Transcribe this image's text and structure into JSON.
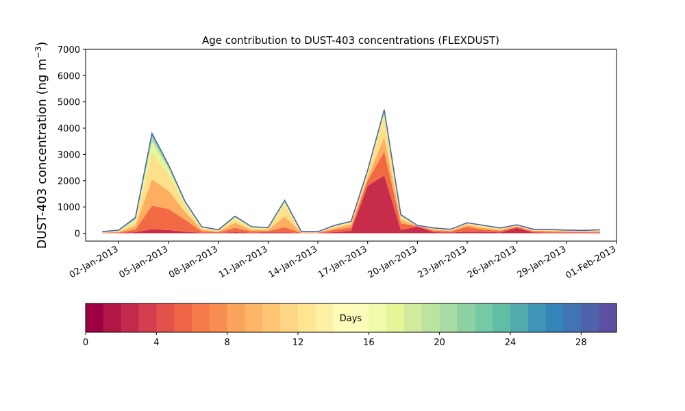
{
  "chart_data": {
    "type": "area",
    "stacked": true,
    "title": "Age contribution to DUST-403 concentrations (FLEXDUST)",
    "ylabel": "DUST-403 concentration (ng m",
    "ylabel_superscript": "−3",
    "ylabel_suffix": ")",
    "xlabel": "",
    "ylim": [
      -300,
      7000
    ],
    "xlim": [
      "2012-12-31",
      "2013-02-01"
    ],
    "grid": false,
    "y_ticks": [
      0,
      1000,
      2000,
      3000,
      4000,
      5000,
      6000,
      7000
    ],
    "x_tick_dates": [
      "2013-01-02",
      "2013-01-05",
      "2013-01-08",
      "2013-01-11",
      "2013-01-14",
      "2013-01-17",
      "2013-01-20",
      "2013-01-23",
      "2013-01-26",
      "2013-01-29",
      "2013-02-01"
    ],
    "x_tick_labels": [
      "02-Jan-2013",
      "05-Jan-2013",
      "08-Jan-2013",
      "11-Jan-2013",
      "14-Jan-2013",
      "17-Jan-2013",
      "20-Jan-2013",
      "23-Jan-2013",
      "26-Jan-2013",
      "29-Jan-2013",
      "01-Feb-2013"
    ],
    "x": [
      "2013-01-01",
      "2013-01-02",
      "2013-01-03",
      "2013-01-04",
      "2013-01-05",
      "2013-01-06",
      "2013-01-07",
      "2013-01-08",
      "2013-01-09",
      "2013-01-10",
      "2013-01-11",
      "2013-01-12",
      "2013-01-13",
      "2013-01-14",
      "2013-01-15",
      "2013-01-16",
      "2013-01-17",
      "2013-01-18",
      "2013-01-19",
      "2013-01-20",
      "2013-01-21",
      "2013-01-22",
      "2013-01-23",
      "2013-01-24",
      "2013-01-25",
      "2013-01-26",
      "2013-01-27",
      "2013-01-28",
      "2013-01-29",
      "2013-01-30",
      "2013-01-31"
    ],
    "total": [
      60,
      120,
      600,
      3800,
      2600,
      1200,
      250,
      130,
      650,
      250,
      210,
      1250,
      70,
      60,
      300,
      450,
      2400,
      4700,
      700,
      300,
      200,
      150,
      400,
      300,
      200,
      320,
      150,
      140,
      120,
      110,
      130
    ],
    "age_bands": [
      {
        "name": "0-4",
        "values": [
          5,
          10,
          40,
          150,
          120,
          60,
          15,
          10,
          40,
          15,
          30,
          30,
          5,
          5,
          40,
          90,
          1800,
          2200,
          120,
          250,
          40,
          25,
          60,
          50,
          30,
          200,
          25,
          20,
          15,
          15,
          15
        ]
      },
      {
        "name": "4-8",
        "values": [
          10,
          20,
          100,
          900,
          800,
          450,
          60,
          30,
          160,
          60,
          50,
          200,
          15,
          15,
          90,
          130,
          200,
          900,
          250,
          20,
          60,
          45,
          180,
          90,
          60,
          40,
          45,
          40,
          35,
          30,
          35
        ]
      },
      {
        "name": "8-12",
        "values": [
          10,
          25,
          150,
          1000,
          700,
          300,
          60,
          30,
          200,
          60,
          50,
          400,
          15,
          15,
          70,
          110,
          130,
          550,
          140,
          10,
          40,
          30,
          80,
          60,
          40,
          30,
          30,
          30,
          25,
          20,
          25
        ]
      },
      {
        "name": "12-16",
        "values": [
          10,
          25,
          150,
          1000,
          600,
          250,
          60,
          30,
          150,
          60,
          40,
          450,
          15,
          10,
          60,
          80,
          170,
          800,
          130,
          10,
          35,
          25,
          50,
          60,
          40,
          30,
          30,
          30,
          25,
          25,
          30
        ]
      },
      {
        "name": "16-20",
        "values": [
          10,
          20,
          80,
          450,
          250,
          90,
          30,
          15,
          60,
          30,
          20,
          120,
          10,
          5,
          20,
          20,
          40,
          150,
          30,
          5,
          15,
          15,
          15,
          20,
          15,
          10,
          10,
          10,
          10,
          10,
          10
        ]
      },
      {
        "name": "20-24",
        "values": [
          8,
          10,
          40,
          200,
          80,
          30,
          15,
          8,
          25,
          15,
          10,
          30,
          5,
          5,
          10,
          10,
          30,
          50,
          15,
          3,
          5,
          5,
          8,
          10,
          8,
          5,
          5,
          5,
          5,
          5,
          8
        ]
      },
      {
        "name": "24-28",
        "values": [
          5,
          7,
          25,
          70,
          40,
          15,
          7,
          5,
          12,
          8,
          7,
          15,
          3,
          3,
          7,
          7,
          20,
          30,
          10,
          1,
          3,
          3,
          5,
          7,
          5,
          3,
          3,
          3,
          3,
          3,
          5
        ]
      },
      {
        "name": "28-30",
        "values": [
          2,
          3,
          15,
          30,
          10,
          5,
          3,
          2,
          3,
          2,
          3,
          5,
          2,
          2,
          3,
          3,
          10,
          20,
          5,
          1,
          2,
          2,
          2,
          3,
          2,
          2,
          2,
          2,
          2,
          2,
          2
        ]
      }
    ],
    "band_colors": [
      "#c72d4b",
      "#f16a43",
      "#fdae61",
      "#fee08b",
      "#e6f598",
      "#abdda4",
      "#66c2a5",
      "#3288bd"
    ],
    "total_line_color": "#4a63a8",
    "colorbar": {
      "label": "Days",
      "ticks": [
        0,
        4,
        8,
        12,
        16,
        20,
        24,
        28
      ],
      "range": [
        0,
        30
      ],
      "colors": [
        "#9e0142",
        "#b11747",
        "#c32a4b",
        "#d53e4f",
        "#e2514a",
        "#ee6445",
        "#f67a49",
        "#f98e52",
        "#fca35c",
        "#fdb567",
        "#fec575",
        "#fed685",
        "#fee592",
        "#fef1a6",
        "#fffbb9",
        "#fbfdba",
        "#f2faac",
        "#e6f598",
        "#d1ec9c",
        "#bbe4a0",
        "#a7dca5",
        "#8ed2a4",
        "#76c9a5",
        "#62bda7",
        "#52acae",
        "#3f96b7",
        "#3585bb",
        "#4273b3",
        "#5062aa",
        "#5e4fa2"
      ]
    }
  }
}
